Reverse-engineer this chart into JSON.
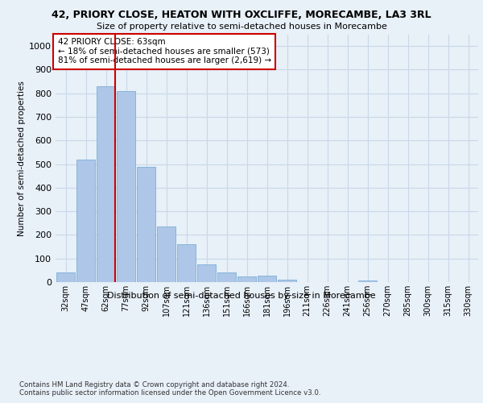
{
  "title_line1": "42, PRIORY CLOSE, HEATON WITH OXCLIFFE, MORECAMBE, LA3 3RL",
  "title_line2": "Size of property relative to semi-detached houses in Morecambe",
  "xlabel": "Distribution of semi-detached houses by size in Morecambe",
  "ylabel": "Number of semi-detached properties",
  "categories": [
    "32sqm",
    "47sqm",
    "62sqm",
    "77sqm",
    "92sqm",
    "107sqm",
    "121sqm",
    "136sqm",
    "151sqm",
    "166sqm",
    "181sqm",
    "196sqm",
    "211sqm",
    "226sqm",
    "241sqm",
    "256sqm",
    "270sqm",
    "285sqm",
    "300sqm",
    "315sqm",
    "330sqm"
  ],
  "values": [
    40,
    520,
    830,
    810,
    490,
    235,
    160,
    75,
    42,
    25,
    28,
    10,
    0,
    0,
    0,
    8,
    0,
    0,
    0,
    0,
    0
  ],
  "bar_color": "#aec6e8",
  "bar_edge_color": "#7bafd4",
  "vline_color": "#cc0000",
  "annotation_text": "42 PRIORY CLOSE: 63sqm\n← 18% of semi-detached houses are smaller (573)\n81% of semi-detached houses are larger (2,619) →",
  "annotation_box_color": "#ffffff",
  "annotation_box_edge": "#cc0000",
  "ylim": [
    0,
    1050
  ],
  "yticks": [
    0,
    100,
    200,
    300,
    400,
    500,
    600,
    700,
    800,
    900,
    1000
  ],
  "grid_color": "#c8d8e8",
  "background_color": "#e8f0f8",
  "footnote": "Contains HM Land Registry data © Crown copyright and database right 2024.\nContains public sector information licensed under the Open Government Licence v3.0."
}
